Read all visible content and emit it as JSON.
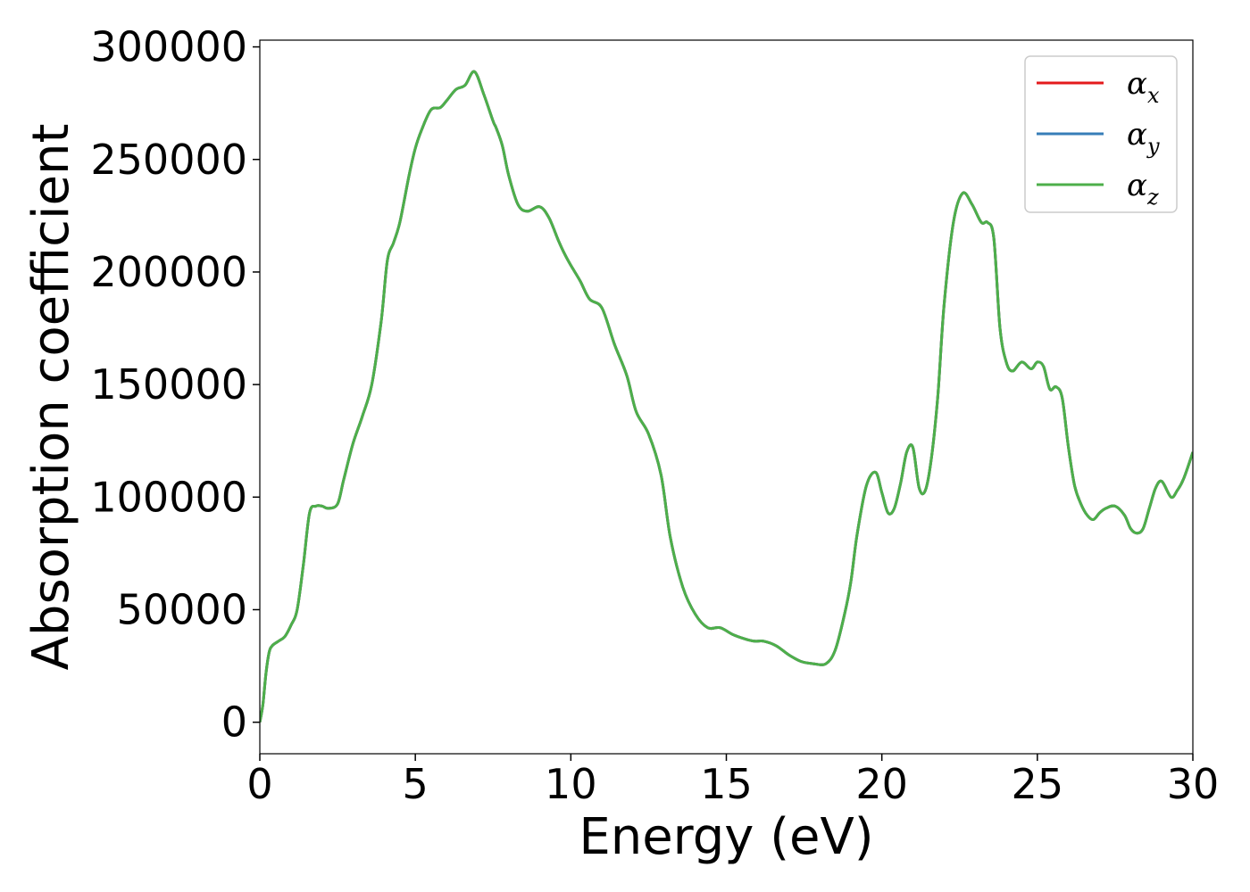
{
  "chart_data": {
    "type": "line",
    "title": "",
    "xlabel": "Energy (eV)",
    "ylabel": "Absorption coefficient",
    "xlim": [
      0,
      30
    ],
    "ylim": [
      -14000,
      303000
    ],
    "xticks": [
      0,
      5,
      10,
      15,
      20,
      25,
      30
    ],
    "yticks": [
      0,
      50000,
      100000,
      150000,
      200000,
      250000,
      300000
    ],
    "grid": false,
    "legend": {
      "placement": "top-right"
    },
    "series": [
      {
        "name": "αx",
        "symbol": "α",
        "subscript": "x",
        "color": "#e41a1c",
        "x": [
          0,
          0.1,
          0.2,
          0.3,
          0.4,
          0.6,
          0.8,
          1.0,
          1.2,
          1.4,
          1.6,
          1.8,
          2.0,
          2.2,
          2.5,
          2.7,
          3.0,
          3.3,
          3.6,
          3.9,
          4.1,
          4.3,
          4.5,
          4.8,
          5.0,
          5.2,
          5.5,
          5.8,
          6.0,
          6.3,
          6.6,
          6.9,
          7.2,
          7.5,
          7.6,
          7.8,
          8.0,
          8.3,
          8.6,
          9.0,
          9.3,
          9.6,
          9.8,
          10.0,
          10.3,
          10.6,
          11.0,
          11.4,
          11.8,
          12.1,
          12.5,
          12.9,
          13.2,
          13.6,
          14.0,
          14.4,
          14.8,
          15.2,
          15.6,
          15.9,
          16.2,
          16.6,
          17.0,
          17.4,
          17.8,
          18.2,
          18.5,
          18.8,
          19.0,
          19.2,
          19.5,
          19.8,
          20.0,
          20.2,
          20.4,
          20.6,
          20.8,
          21.0,
          21.2,
          21.4,
          21.6,
          21.8,
          22.0,
          22.3,
          22.6,
          22.9,
          23.2,
          23.4,
          23.6,
          23.8,
          24.0,
          24.2,
          24.5,
          24.8,
          25.0,
          25.2,
          25.4,
          25.6,
          25.8,
          26.0,
          26.2,
          26.4,
          26.6,
          26.8,
          27.0,
          27.2,
          27.5,
          27.8,
          28.0,
          28.2,
          28.4,
          28.6,
          28.8,
          29.0,
          29.3,
          29.5,
          29.7,
          30.0
        ],
        "y": [
          0,
          8000,
          22000,
          31000,
          34000,
          36000,
          38000,
          43000,
          50000,
          70000,
          93000,
          96000,
          96000,
          95000,
          97000,
          108000,
          124000,
          136000,
          150000,
          178000,
          205000,
          213000,
          222000,
          243000,
          255000,
          263000,
          272000,
          273000,
          276000,
          281000,
          283000,
          289000,
          279000,
          267000,
          264000,
          256000,
          243000,
          230000,
          227000,
          229000,
          224000,
          214000,
          208000,
          203000,
          196000,
          188000,
          184000,
          168000,
          154000,
          138000,
          128000,
          110000,
          82000,
          60000,
          48000,
          42000,
          42000,
          39000,
          37000,
          36000,
          36000,
          34000,
          30000,
          27000,
          26000,
          26000,
          32000,
          48000,
          62000,
          83000,
          105000,
          111000,
          102000,
          93000,
          95000,
          106000,
          120000,
          122000,
          104000,
          103000,
          118000,
          145000,
          185000,
          222000,
          235000,
          230000,
          222000,
          222000,
          215000,
          175000,
          160000,
          156000,
          160000,
          157000,
          160000,
          158000,
          148000,
          149000,
          144000,
          122000,
          105000,
          97000,
          92000,
          90000,
          93000,
          95000,
          96000,
          92000,
          86000,
          84000,
          86000,
          95000,
          104000,
          107000,
          100000,
          103000,
          108000,
          120000
        ]
      },
      {
        "name": "αy",
        "symbol": "α",
        "subscript": "y",
        "color": "#377eb8",
        "x": [
          0,
          0.1,
          0.2,
          0.3,
          0.4,
          0.6,
          0.8,
          1.0,
          1.2,
          1.4,
          1.6,
          1.8,
          2.0,
          2.2,
          2.5,
          2.7,
          3.0,
          3.3,
          3.6,
          3.9,
          4.1,
          4.3,
          4.5,
          4.8,
          5.0,
          5.2,
          5.5,
          5.8,
          6.0,
          6.3,
          6.6,
          6.9,
          7.2,
          7.5,
          7.6,
          7.8,
          8.0,
          8.3,
          8.6,
          9.0,
          9.3,
          9.6,
          9.8,
          10.0,
          10.3,
          10.6,
          11.0,
          11.4,
          11.8,
          12.1,
          12.5,
          12.9,
          13.2,
          13.6,
          14.0,
          14.4,
          14.8,
          15.2,
          15.6,
          15.9,
          16.2,
          16.6,
          17.0,
          17.4,
          17.8,
          18.2,
          18.5,
          18.8,
          19.0,
          19.2,
          19.5,
          19.8,
          20.0,
          20.2,
          20.4,
          20.6,
          20.8,
          21.0,
          21.2,
          21.4,
          21.6,
          21.8,
          22.0,
          22.3,
          22.6,
          22.9,
          23.2,
          23.4,
          23.6,
          23.8,
          24.0,
          24.2,
          24.5,
          24.8,
          25.0,
          25.2,
          25.4,
          25.6,
          25.8,
          26.0,
          26.2,
          26.4,
          26.6,
          26.8,
          27.0,
          27.2,
          27.5,
          27.8,
          28.0,
          28.2,
          28.4,
          28.6,
          28.8,
          29.0,
          29.3,
          29.5,
          29.7,
          30.0
        ],
        "y": [
          0,
          8000,
          22000,
          31000,
          34000,
          36000,
          38000,
          43000,
          50000,
          70000,
          93000,
          96000,
          96000,
          95000,
          97000,
          108000,
          124000,
          136000,
          150000,
          178000,
          205000,
          213000,
          222000,
          243000,
          255000,
          263000,
          272000,
          273000,
          276000,
          281000,
          283000,
          289000,
          279000,
          267000,
          264000,
          256000,
          243000,
          230000,
          227000,
          229000,
          224000,
          214000,
          208000,
          203000,
          196000,
          188000,
          184000,
          168000,
          154000,
          138000,
          128000,
          110000,
          82000,
          60000,
          48000,
          42000,
          42000,
          39000,
          37000,
          36000,
          36000,
          34000,
          30000,
          27000,
          26000,
          26000,
          32000,
          48000,
          62000,
          83000,
          105000,
          111000,
          102000,
          93000,
          95000,
          106000,
          120000,
          122000,
          104000,
          103000,
          118000,
          145000,
          185000,
          222000,
          235000,
          230000,
          222000,
          222000,
          215000,
          175000,
          160000,
          156000,
          160000,
          157000,
          160000,
          158000,
          148000,
          149000,
          144000,
          122000,
          105000,
          97000,
          92000,
          90000,
          93000,
          95000,
          96000,
          92000,
          86000,
          84000,
          86000,
          95000,
          104000,
          107000,
          100000,
          103000,
          108000,
          120000
        ]
      },
      {
        "name": "αz",
        "symbol": "α",
        "subscript": "z",
        "color": "#4daf4a",
        "x": [
          0,
          0.1,
          0.2,
          0.3,
          0.4,
          0.6,
          0.8,
          1.0,
          1.2,
          1.4,
          1.6,
          1.8,
          2.0,
          2.2,
          2.5,
          2.7,
          3.0,
          3.3,
          3.6,
          3.9,
          4.1,
          4.3,
          4.5,
          4.8,
          5.0,
          5.2,
          5.5,
          5.8,
          6.0,
          6.3,
          6.6,
          6.9,
          7.2,
          7.5,
          7.6,
          7.8,
          8.0,
          8.3,
          8.6,
          9.0,
          9.3,
          9.6,
          9.8,
          10.0,
          10.3,
          10.6,
          11.0,
          11.4,
          11.8,
          12.1,
          12.5,
          12.9,
          13.2,
          13.6,
          14.0,
          14.4,
          14.8,
          15.2,
          15.6,
          15.9,
          16.2,
          16.6,
          17.0,
          17.4,
          17.8,
          18.2,
          18.5,
          18.8,
          19.0,
          19.2,
          19.5,
          19.8,
          20.0,
          20.2,
          20.4,
          20.6,
          20.8,
          21.0,
          21.2,
          21.4,
          21.6,
          21.8,
          22.0,
          22.3,
          22.6,
          22.9,
          23.2,
          23.4,
          23.6,
          23.8,
          24.0,
          24.2,
          24.5,
          24.8,
          25.0,
          25.2,
          25.4,
          25.6,
          25.8,
          26.0,
          26.2,
          26.4,
          26.6,
          26.8,
          27.0,
          27.2,
          27.5,
          27.8,
          28.0,
          28.2,
          28.4,
          28.6,
          28.8,
          29.0,
          29.3,
          29.5,
          29.7,
          30.0
        ],
        "y": [
          0,
          8000,
          22000,
          31000,
          34000,
          36000,
          38000,
          43000,
          50000,
          70000,
          93000,
          96000,
          96000,
          95000,
          97000,
          108000,
          124000,
          136000,
          150000,
          178000,
          205000,
          213000,
          222000,
          243000,
          255000,
          263000,
          272000,
          273000,
          276000,
          281000,
          283000,
          289000,
          279000,
          267000,
          264000,
          256000,
          243000,
          230000,
          227000,
          229000,
          224000,
          214000,
          208000,
          203000,
          196000,
          188000,
          184000,
          168000,
          154000,
          138000,
          128000,
          110000,
          82000,
          60000,
          48000,
          42000,
          42000,
          39000,
          37000,
          36000,
          36000,
          34000,
          30000,
          27000,
          26000,
          26000,
          32000,
          48000,
          62000,
          83000,
          105000,
          111000,
          102000,
          93000,
          95000,
          106000,
          120000,
          122000,
          104000,
          103000,
          118000,
          145000,
          185000,
          222000,
          235000,
          230000,
          222000,
          222000,
          215000,
          175000,
          160000,
          156000,
          160000,
          157000,
          160000,
          158000,
          148000,
          149000,
          144000,
          122000,
          105000,
          97000,
          92000,
          90000,
          93000,
          95000,
          96000,
          92000,
          86000,
          84000,
          86000,
          95000,
          104000,
          107000,
          100000,
          103000,
          108000,
          120000
        ]
      }
    ]
  }
}
